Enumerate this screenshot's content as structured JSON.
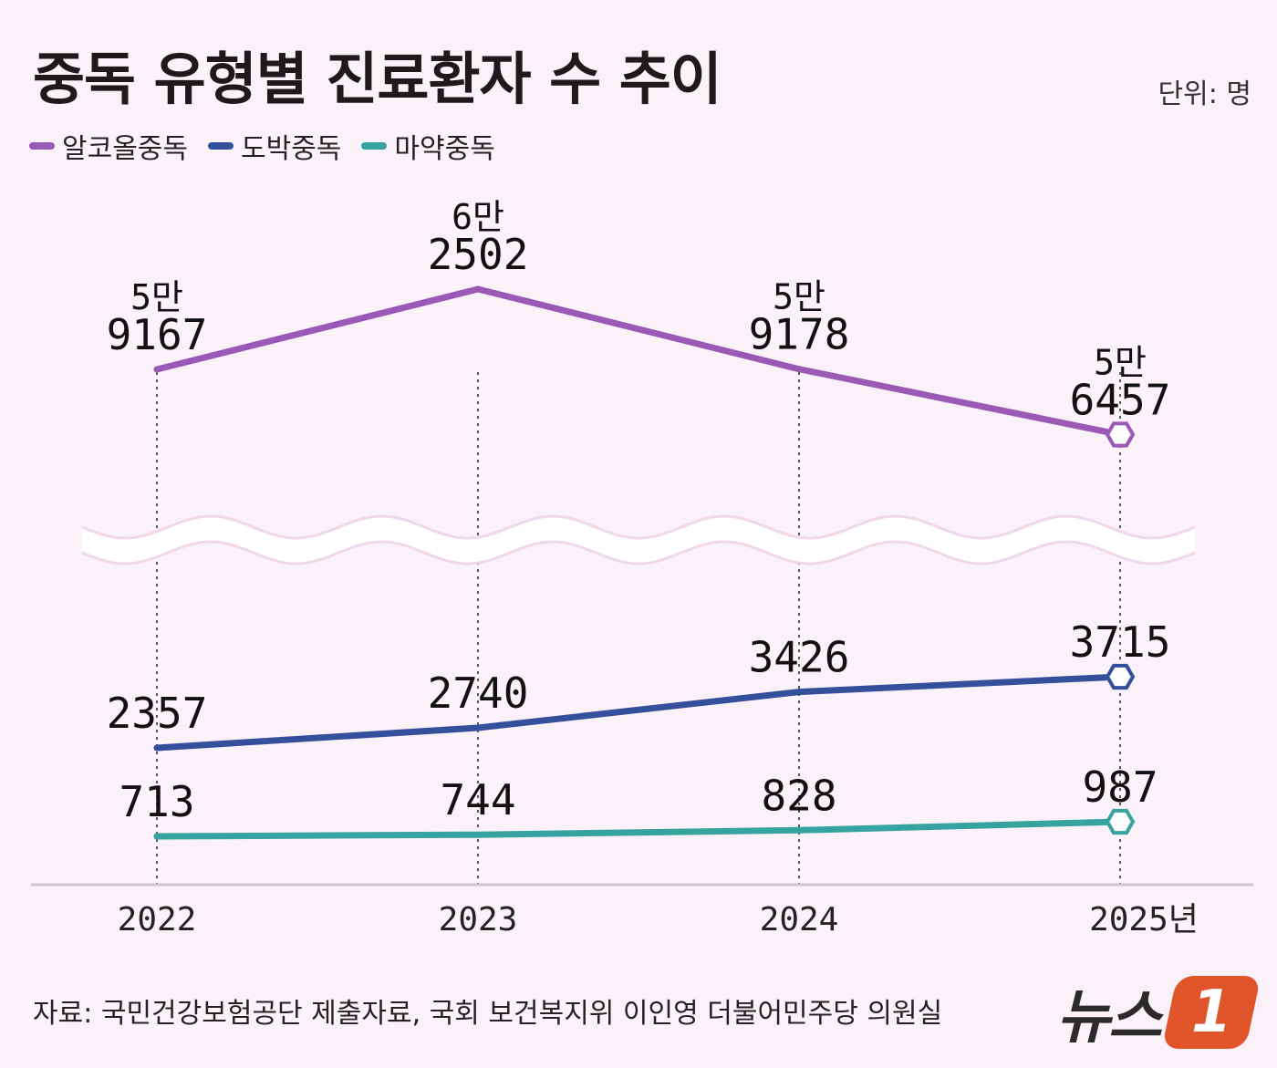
{
  "header": {
    "title": "중독 유형별 진료환자 수 추이",
    "unit": "단위: 명"
  },
  "legend": [
    {
      "label": "알코올중독",
      "color": "#9b59b6"
    },
    {
      "label": "도박중독",
      "color": "#34509c"
    },
    {
      "label": "마약중독",
      "color": "#37a3a0"
    }
  ],
  "footer": {
    "source": "자료: 국민건강보험공단 제출자료, 국회 보건복지위 이인영 더불어민주당 의원실",
    "logo_text": "뉴스",
    "logo_badge": "1"
  },
  "chart_data": {
    "type": "line",
    "categories": [
      "2022",
      "2023",
      "2024",
      "2025년"
    ],
    "axis_break": true,
    "grid": false,
    "legend_position": "top-left",
    "series": [
      {
        "name": "알코올중독",
        "color": "#9b59b6",
        "values": [
          59167,
          62502,
          59178,
          56457
        ],
        "labels": [
          [
            "5만",
            "9167"
          ],
          [
            "6만",
            "2502"
          ],
          [
            "5만",
            "9178"
          ],
          [
            "5만",
            "6457"
          ]
        ]
      },
      {
        "name": "도박중독",
        "color": "#34509c",
        "values": [
          2357,
          2740,
          3426,
          3715
        ],
        "labels": [
          [
            "2357"
          ],
          [
            "2740"
          ],
          [
            "3426"
          ],
          [
            "3715"
          ]
        ]
      },
      {
        "name": "마약중독",
        "color": "#37a3a0",
        "values": [
          713,
          744,
          828,
          987
        ],
        "labels": [
          [
            "713"
          ],
          [
            "744"
          ],
          [
            "828"
          ],
          [
            "987"
          ]
        ]
      }
    ]
  }
}
